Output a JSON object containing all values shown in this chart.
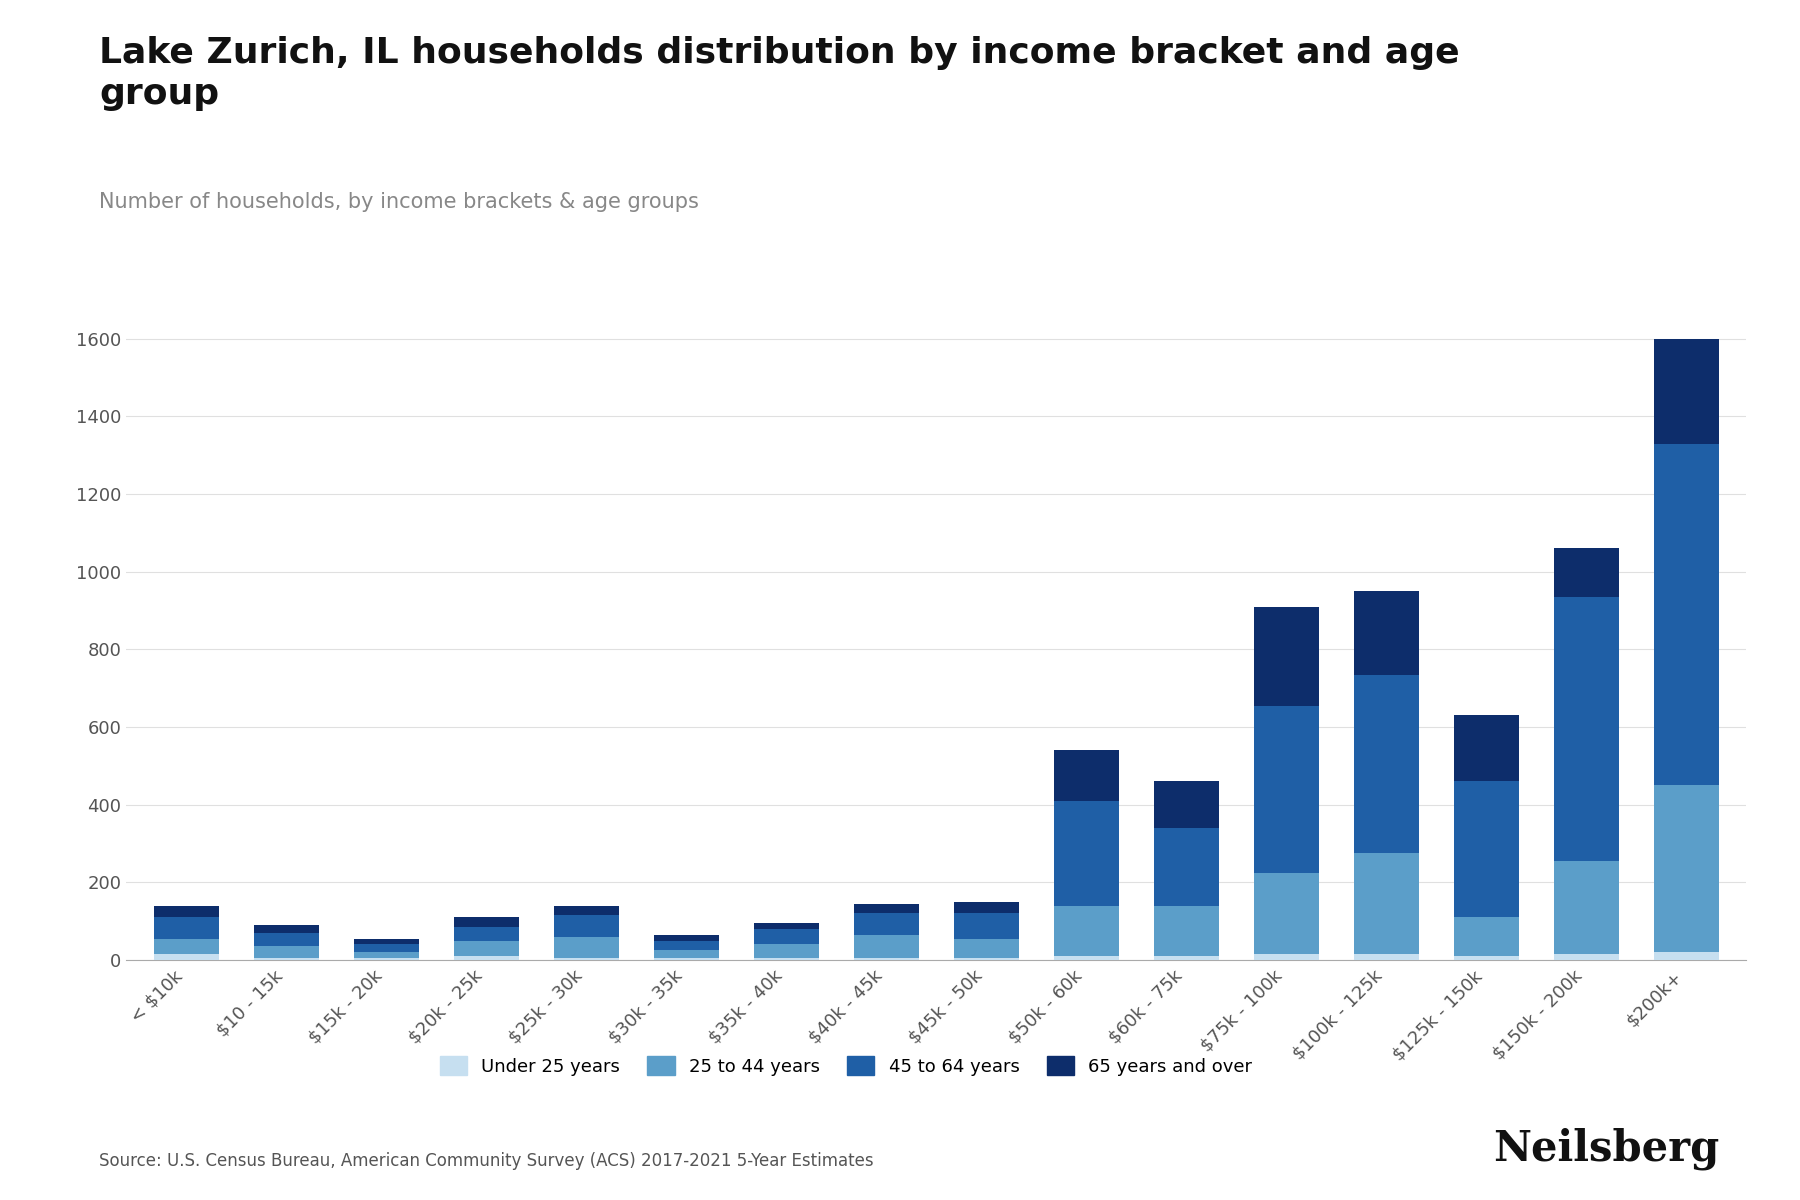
{
  "title": "Lake Zurich, IL households distribution by income bracket and age\ngroup",
  "subtitle": "Number of households, by income brackets & age groups",
  "source": "Source: U.S. Census Bureau, American Community Survey (ACS) 2017-2021 5-Year Estimates",
  "categories": [
    "< $10k",
    "$10 - 15k",
    "$15k - 20k",
    "$20k - 25k",
    "$25k - 30k",
    "$30k - 35k",
    "$35k - 40k",
    "$40k - 45k",
    "$45k - 50k",
    "$50k - 60k",
    "$60k - 75k",
    "$75k - 100k",
    "$100k - 125k",
    "$125k - 150k",
    "$150k - 200k",
    "$200k+"
  ],
  "age_groups": [
    "Under 25 years",
    "25 to 44 years",
    "45 to 64 years",
    "65 years and over"
  ],
  "colors": [
    "#c6dff0",
    "#5b9ec9",
    "#1f5fa6",
    "#0d2d6b"
  ],
  "data": {
    "Under 25 years": [
      15,
      5,
      5,
      10,
      5,
      5,
      5,
      5,
      5,
      10,
      10,
      15,
      15,
      10,
      15,
      20
    ],
    "25 to 44 years": [
      40,
      30,
      15,
      40,
      55,
      20,
      35,
      60,
      50,
      130,
      130,
      210,
      260,
      100,
      240,
      430
    ],
    "45 to 64 years": [
      55,
      35,
      20,
      35,
      55,
      25,
      40,
      55,
      65,
      270,
      200,
      430,
      460,
      350,
      680,
      880
    ],
    "65 years and over": [
      30,
      20,
      15,
      25,
      25,
      15,
      15,
      25,
      30,
      130,
      120,
      255,
      215,
      170,
      125,
      270
    ]
  },
  "ylim": [
    0,
    1700
  ],
  "yticks": [
    0,
    200,
    400,
    600,
    800,
    1000,
    1200,
    1400,
    1600
  ],
  "background_color": "#ffffff",
  "grid_color": "#e0e0e0",
  "title_fontsize": 26,
  "subtitle_fontsize": 15,
  "tick_fontsize": 13,
  "legend_fontsize": 13,
  "source_fontsize": 12,
  "brand_text": "Neilsberg",
  "brand_fontsize": 30
}
